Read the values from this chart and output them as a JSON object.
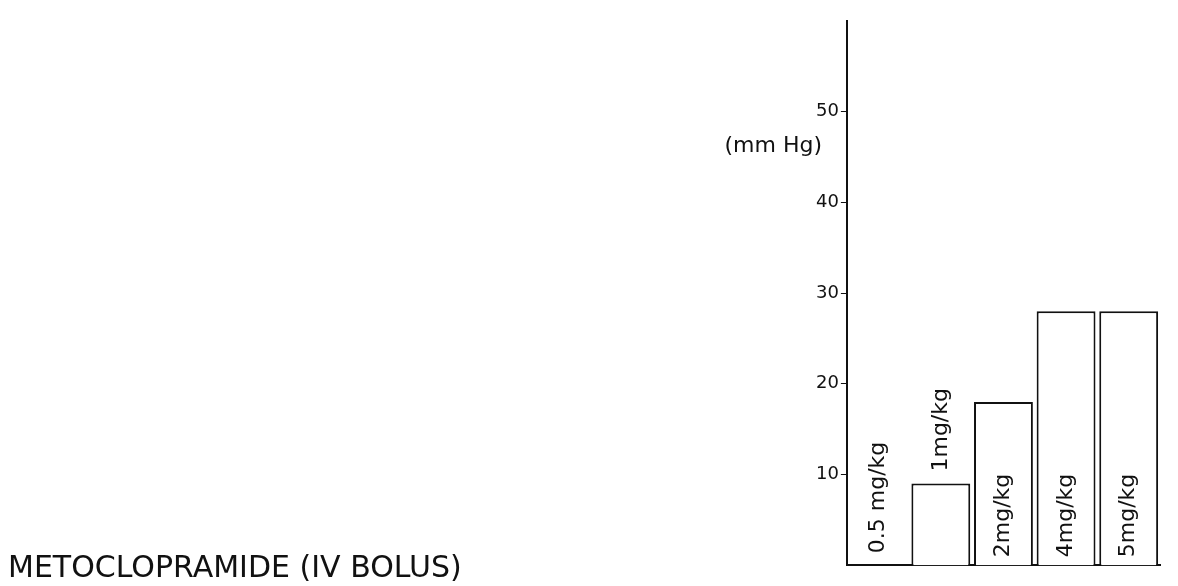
{
  "chart_data": {
    "type": "bar",
    "title": "METOCLOPRAMIDE (IV BOLUS)",
    "ylabel": "(mm Hg)",
    "categories": [
      "0.5 mg/kg",
      "1mg/kg",
      "2mg/kg",
      "4mg/kg",
      "5mg/kg"
    ],
    "values": [
      0,
      9,
      18,
      28,
      28
    ],
    "color": "#ffffff",
    "ylim": [
      0,
      60
    ],
    "yticks": [
      10,
      20,
      30,
      40,
      50
    ],
    "grid": false,
    "legend": false
  }
}
